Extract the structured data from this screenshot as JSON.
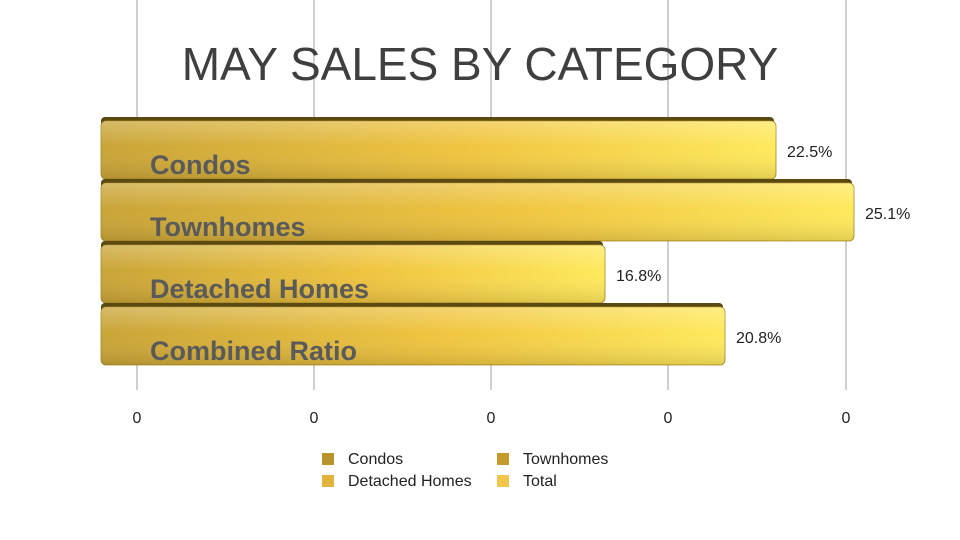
{
  "chart_data": {
    "type": "bar",
    "orientation": "horizontal",
    "title": "MAY SALES BY CATEGORY",
    "categories": [
      "Condos",
      "Townhomes",
      "Detached Homes",
      "Combined Ratio"
    ],
    "values": [
      22.5,
      25.1,
      16.8,
      20.8
    ],
    "value_labels": [
      "22.5%",
      "25.1%",
      "16.8%",
      "20.8%"
    ],
    "x_tick_labels": [
      "0",
      "0",
      "0",
      "0",
      "0"
    ],
    "xlim": [
      0,
      25
    ],
    "grid": "vertical",
    "legend": {
      "position": "bottom",
      "entries": [
        {
          "name": "Condos",
          "color": "#b9932e"
        },
        {
          "name": "Townhomes",
          "color": "#c49a2c"
        },
        {
          "name": "Detached Homes",
          "color": "#e2b43d"
        },
        {
          "name": "Total",
          "color": "#f3c54a"
        }
      ]
    },
    "colors": {
      "bar_left": "#c9a437",
      "bar_mid": "#f0c540",
      "bar_right": "#ffe95c",
      "bar_top_shadow": "#5a4a12",
      "grid": "#b5b5b5"
    }
  }
}
